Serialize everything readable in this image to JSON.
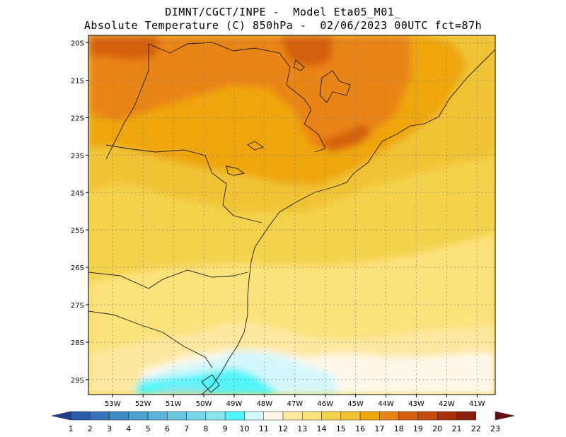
{
  "header": {
    "line1": "DIMNT/CGCT/INPE -  Model Eta05_M01_",
    "line2": "Absolute Temperature (C) 850hPa -  02/06/2023 00UTC fct=87h"
  },
  "map": {
    "lat_labels": [
      "20S",
      "21S",
      "22S",
      "23S",
      "24S",
      "25S",
      "26S",
      "27S",
      "28S",
      "29S"
    ],
    "lon_labels": [
      "53W",
      "52W",
      "51W",
      "50W",
      "49W",
      "48W",
      "47W",
      "46W",
      "45W",
      "44W",
      "43W",
      "42W",
      "41W"
    ],
    "lat_range": [
      -29.4,
      -19.8
    ],
    "lon_range": [
      -53.8,
      -40.4
    ],
    "grid": "dotted"
  },
  "colorbar": {
    "labels": [
      "1",
      "2",
      "3",
      "4",
      "5",
      "6",
      "7",
      "8",
      "9",
      "10",
      "11",
      "12",
      "13",
      "14",
      "15",
      "16",
      "17",
      "18",
      "19",
      "20",
      "21",
      "22",
      "23"
    ],
    "colors": [
      "#1f3f8f",
      "#2a5ba6",
      "#3474b6",
      "#3e8bc4",
      "#4aa0cf",
      "#58b4d8",
      "#67c6e0",
      "#77d7e8",
      "#8ae6ee",
      "#53f5fb",
      "#d5f7fb",
      "#fff8ea",
      "#fde8a0",
      "#fbe27a",
      "#f4d24c",
      "#f0c335",
      "#efa60a",
      "#e98416",
      "#d65f0f",
      "#c44b10",
      "#a8300b",
      "#8a1e0f",
      "#6a0a14"
    ]
  }
}
